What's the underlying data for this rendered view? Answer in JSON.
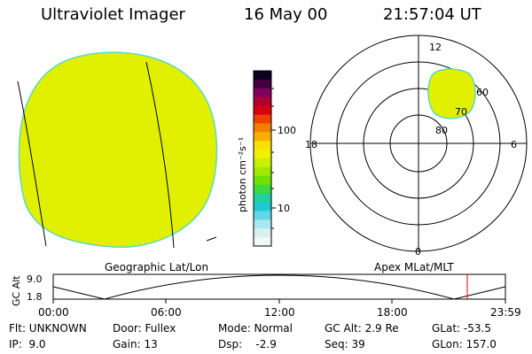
{
  "header": {
    "instrument": "Ultraviolet Imager",
    "date": "16 May 00",
    "time": "21:57:04 UT"
  },
  "colorbar": {
    "unit_label": "photon cm⁻²s⁻¹",
    "ticks": [
      "100",
      "10"
    ],
    "colors": [
      "#0a0020",
      "#400040",
      "#800060",
      "#b00030",
      "#d80010",
      "#f04000",
      "#f08000",
      "#f8b000",
      "#f8e000",
      "#f0f000",
      "#c8f000",
      "#a0e800",
      "#70e000",
      "#40d840",
      "#20d0a0",
      "#20c8d0",
      "#60d8e8",
      "#a8e8f0",
      "#d8f0f0",
      "#f0f8f8"
    ]
  },
  "polar": {
    "mlt_labels": {
      "top": "12",
      "left": "18",
      "right": "6",
      "bottom": "0"
    },
    "lat_labels": [
      "60",
      "70",
      "80"
    ]
  },
  "plot_labels": {
    "geo": "Geographic Lat/Lon",
    "apex": "Apex  MLat/MLT"
  },
  "altitude": {
    "axis_label": "GC Alt",
    "y_ticks": [
      "9.0",
      "1.8"
    ],
    "x_ticks": [
      "00:00",
      "06:00",
      "12:00",
      "18:00",
      "23:59"
    ],
    "marker_color": "#e00000"
  },
  "info": {
    "flt": "Flt: UNKNOWN",
    "ip": "IP:  9.0",
    "door": "Door: Fullex",
    "gain": "Gain: 13",
    "mode": "Mode: Normal",
    "dsp": "Dsp:    -2.9",
    "gcalt": "GC Alt: 2.9 Re",
    "seq": "Seq: 39",
    "glat": "GLat: -53.5",
    "glon": "GLon: 157.0"
  },
  "colors": {
    "image_fill": "#e0f000",
    "image_edge": "#60d8c0"
  }
}
